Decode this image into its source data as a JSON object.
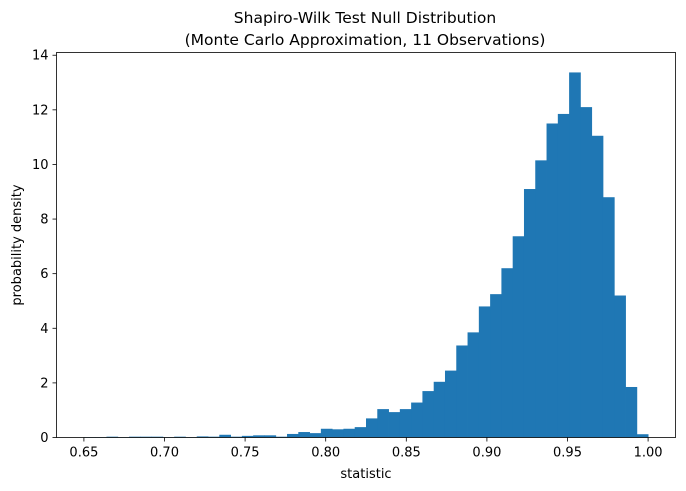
{
  "chart_data": {
    "type": "bar",
    "title": "Shapiro-Wilk Test Null Distribution",
    "subtitle": "(Monte Carlo Approximation, 11 Observations)",
    "xlabel": "statistic",
    "ylabel": "probability density",
    "xlim": [
      0.633,
      1.017
    ],
    "ylim": [
      0,
      14.1
    ],
    "grid": false,
    "bar_color": "#1f77b4",
    "x_ticks": [
      0.65,
      0.7,
      0.75,
      0.8,
      0.85,
      0.9,
      0.95,
      1.0
    ],
    "x_tick_labels": [
      "0.65",
      "0.70",
      "0.75",
      "0.80",
      "0.85",
      "0.90",
      "0.95",
      "1.00"
    ],
    "y_ticks": [
      0,
      2,
      4,
      6,
      8,
      10,
      12,
      14
    ],
    "y_tick_labels": [
      "0",
      "2",
      "4",
      "6",
      "8",
      "10",
      "12",
      "14"
    ],
    "bin_start": 0.65,
    "bin_width": 0.007,
    "densities": [
      0.01,
      0.01,
      0.03,
      0.01,
      0.03,
      0.03,
      0.03,
      0.01,
      0.03,
      0.01,
      0.04,
      0.03,
      0.1,
      0.03,
      0.06,
      0.08,
      0.08,
      0.03,
      0.13,
      0.2,
      0.16,
      0.32,
      0.3,
      0.32,
      0.38,
      0.7,
      1.04,
      0.93,
      1.04,
      1.28,
      1.7,
      2.04,
      2.45,
      3.37,
      3.85,
      4.8,
      5.25,
      6.2,
      7.37,
      9.1,
      10.15,
      11.5,
      11.85,
      13.37,
      12.1,
      11.05,
      8.8,
      5.2,
      1.85,
      0.12
    ]
  }
}
